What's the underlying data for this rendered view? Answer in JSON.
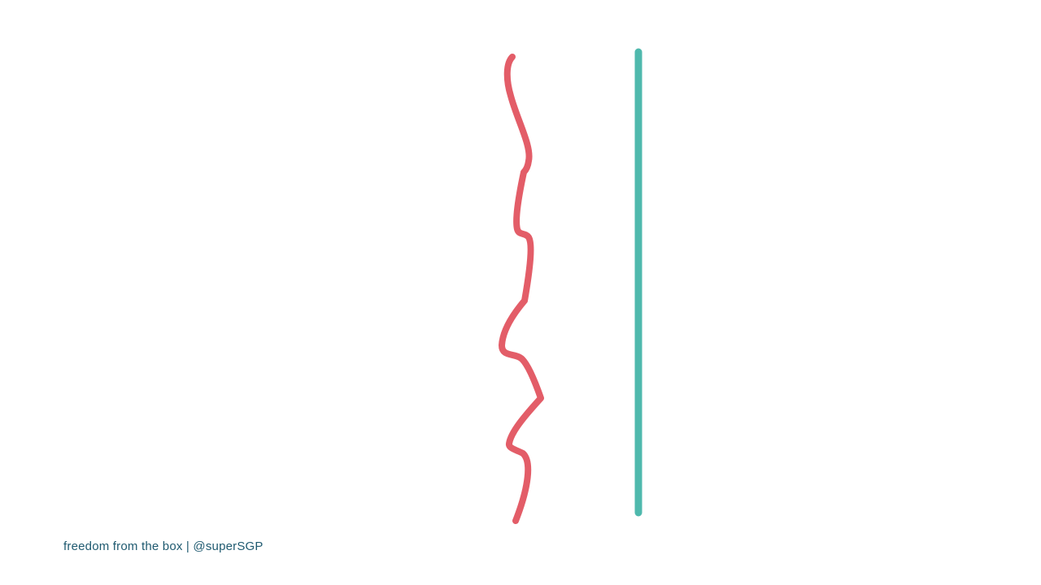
{
  "footer": {
    "text": "freedom from the box | @superSGP"
  },
  "colors": {
    "background": "#ffffff",
    "wavy_line": "#e35d68",
    "straight_line": "#4fb9ad",
    "footer_text": "#1f5a70"
  }
}
